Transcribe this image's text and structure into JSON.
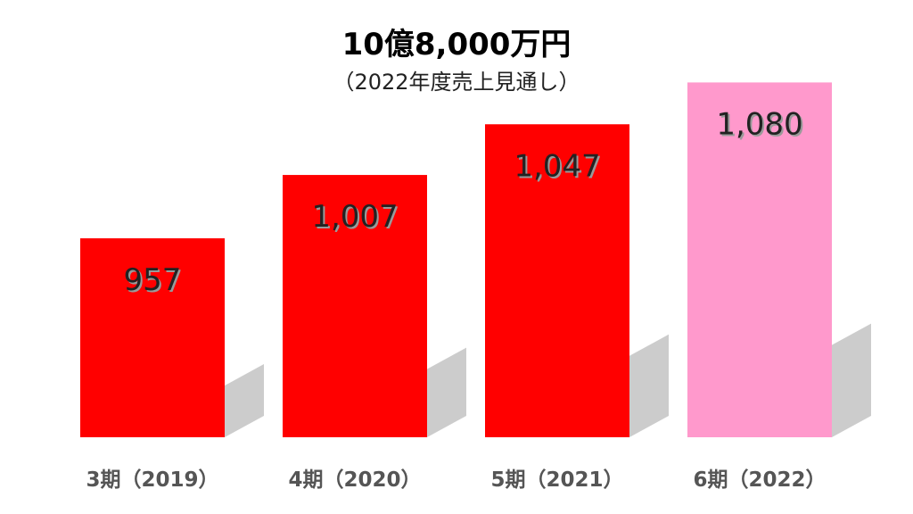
{
  "chart_data": {
    "type": "bar",
    "title": "10億8,000万円",
    "subtitle": "（2022年度売上見通し）",
    "categories": [
      "3期（2019）",
      "4期（2020）",
      "5期（2021）",
      "6期（2022）"
    ],
    "values": [
      957,
      1007,
      1047,
      1080
    ],
    "value_labels": [
      "957",
      "1,007",
      "1,047",
      "1,080"
    ],
    "colors": [
      "#ff0000",
      "#ff0000",
      "#ff0000",
      "#ff99cc"
    ],
    "label_color": "#222222",
    "ylim": [
      800,
      1100
    ],
    "grid": false,
    "legend": "none"
  }
}
